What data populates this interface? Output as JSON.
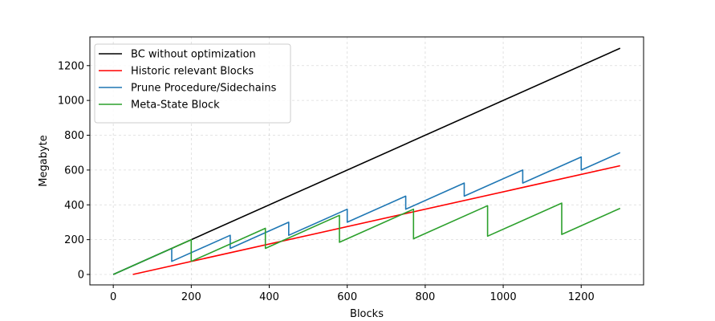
{
  "chart_data": {
    "type": "line",
    "title": "",
    "xlabel": "Blocks",
    "ylabel": "Megabyte",
    "xlim": [
      -60,
      1360
    ],
    "ylim": [
      -60,
      1365
    ],
    "xticks": [
      0,
      200,
      400,
      600,
      800,
      1000,
      1200
    ],
    "yticks": [
      0,
      200,
      400,
      600,
      800,
      1000,
      1200
    ],
    "grid": true,
    "legend_position": "top-left",
    "series": [
      {
        "name": "BC without optimization",
        "color": "#000000",
        "points": [
          [
            0,
            0
          ],
          [
            1300,
            1300
          ]
        ]
      },
      {
        "name": "Historic relevant Blocks",
        "color": "#ff0000",
        "points": [
          [
            50,
            0
          ],
          [
            1300,
            625
          ]
        ]
      },
      {
        "name": "Prune Procedure/Sidechains",
        "color": "#1f77b4",
        "points": [
          [
            0,
            0
          ],
          [
            150,
            150
          ],
          [
            150,
            75
          ],
          [
            300,
            225
          ],
          [
            300,
            150
          ],
          [
            450,
            300
          ],
          [
            450,
            225
          ],
          [
            600,
            375
          ],
          [
            600,
            300
          ],
          [
            750,
            450
          ],
          [
            750,
            375
          ],
          [
            900,
            525
          ],
          [
            900,
            450
          ],
          [
            1050,
            600
          ],
          [
            1050,
            525
          ],
          [
            1200,
            675
          ],
          [
            1200,
            600
          ],
          [
            1300,
            700
          ]
        ]
      },
      {
        "name": "Meta-State Block",
        "color": "#2ca02c",
        "points": [
          [
            0,
            0
          ],
          [
            200,
            200
          ],
          [
            200,
            75
          ],
          [
            390,
            265
          ],
          [
            390,
            150
          ],
          [
            580,
            340
          ],
          [
            580,
            185
          ],
          [
            770,
            375
          ],
          [
            770,
            205
          ],
          [
            960,
            395
          ],
          [
            960,
            220
          ],
          [
            1150,
            410
          ],
          [
            1150,
            230
          ],
          [
            1300,
            380
          ]
        ]
      }
    ]
  }
}
